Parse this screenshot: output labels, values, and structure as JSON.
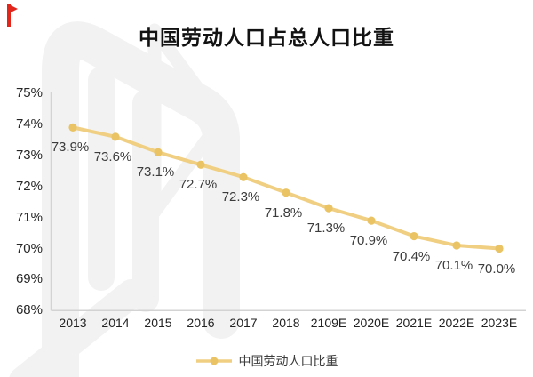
{
  "page": {
    "title": "中国劳动人口占总人口比重"
  },
  "brand": {
    "corner_mark": "red-flag-mark",
    "corner_mark_color": "#E2261C",
    "watermark": "light-gray-logo-watermark",
    "watermark_color": "#F2F2F2"
  },
  "chart_data": {
    "type": "line",
    "title": "中国劳动人口占总人口比重",
    "categories": [
      "2013",
      "2014",
      "2015",
      "2016",
      "2017",
      "2018",
      "2109E",
      "2020E",
      "2021E",
      "2022E",
      "2023E"
    ],
    "series": [
      {
        "name": "中国劳动人口比重",
        "values": [
          73.9,
          73.6,
          73.1,
          72.7,
          72.3,
          71.8,
          71.3,
          70.9,
          70.4,
          70.1,
          70.0
        ]
      }
    ],
    "data_labels": [
      "73.9%",
      "73.6%",
      "73.1%",
      "72.7%",
      "72.3%",
      "71.8%",
      "71.3%",
      "70.9%",
      "70.4%",
      "70.1%",
      "70.0%"
    ],
    "y_ticks": {
      "labels": [
        "75%",
        "74%",
        "73%",
        "72%",
        "71%",
        "70%",
        "69%",
        "68%"
      ],
      "values": [
        75,
        74,
        73,
        72,
        71,
        70,
        69,
        68
      ]
    },
    "ylim": [
      68,
      75
    ],
    "xlabel": "",
    "ylabel": "",
    "grid": false,
    "legend_position": "bottom",
    "line_color": "#F0CF82",
    "marker_color": "#EAC464",
    "axis_color": "#D3D3D3",
    "label_color": "#3C3C3C"
  }
}
